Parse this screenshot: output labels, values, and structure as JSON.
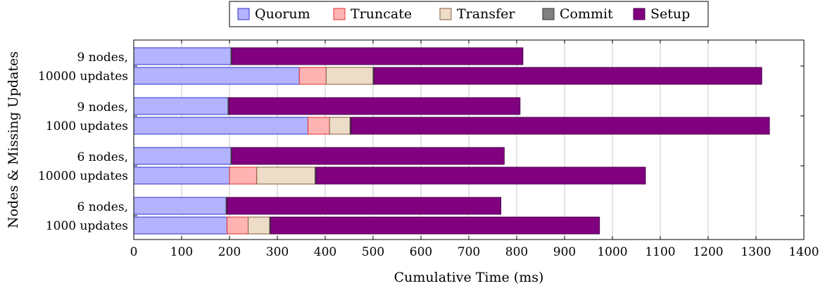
{
  "chart_data": {
    "type": "bar",
    "orientation": "horizontal",
    "stacked": true,
    "xlabel": "Cumulative Time (ms)",
    "ylabel": "Nodes & Missing Updates",
    "xlim": [
      0,
      1400
    ],
    "xticks": [
      0,
      100,
      200,
      300,
      400,
      500,
      600,
      700,
      800,
      900,
      1000,
      1100,
      1200,
      1300,
      1400
    ],
    "grid": "vertical",
    "legend_position": "top-center",
    "groups": [
      {
        "label_line1": "9 nodes,",
        "label_line2": "10000 updates"
      },
      {
        "label_line1": "9 nodes,",
        "label_line2": "1000 updates"
      },
      {
        "label_line1": "6 nodes,",
        "label_line2": "10000 updates"
      },
      {
        "label_line1": "6 nodes,",
        "label_line2": "1000 updates"
      }
    ],
    "series": [
      {
        "name": "Quorum",
        "fill": "#b3b3ff",
        "stroke": "#3333cc"
      },
      {
        "name": "Truncate",
        "fill": "#ffb3b3",
        "stroke": "#e03030"
      },
      {
        "name": "Transfer",
        "fill": "#ecdcc8",
        "stroke": "#8b5a3c"
      },
      {
        "name": "Commit",
        "fill": "#808080",
        "stroke": "#333333"
      },
      {
        "name": "Setup",
        "fill": "#800080",
        "stroke": "#4d004d"
      }
    ],
    "bars": [
      {
        "group": 0,
        "row": "upper",
        "values": [
          203,
          0,
          0,
          2,
          608
        ]
      },
      {
        "group": 0,
        "row": "lower",
        "values": [
          346,
          56,
          98,
          2,
          810
        ]
      },
      {
        "group": 1,
        "row": "upper",
        "values": [
          197,
          0,
          0,
          2,
          608
        ]
      },
      {
        "group": 1,
        "row": "lower",
        "values": [
          364,
          45,
          43,
          2,
          874
        ]
      },
      {
        "group": 2,
        "row": "upper",
        "values": [
          203,
          0,
          0,
          2,
          569
        ]
      },
      {
        "group": 2,
        "row": "lower",
        "values": [
          200,
          57,
          122,
          2,
          688
        ]
      },
      {
        "group": 3,
        "row": "upper",
        "values": [
          193,
          0,
          0,
          2,
          572
        ]
      },
      {
        "group": 3,
        "row": "lower",
        "values": [
          195,
          44,
          45,
          2,
          687
        ]
      }
    ]
  }
}
